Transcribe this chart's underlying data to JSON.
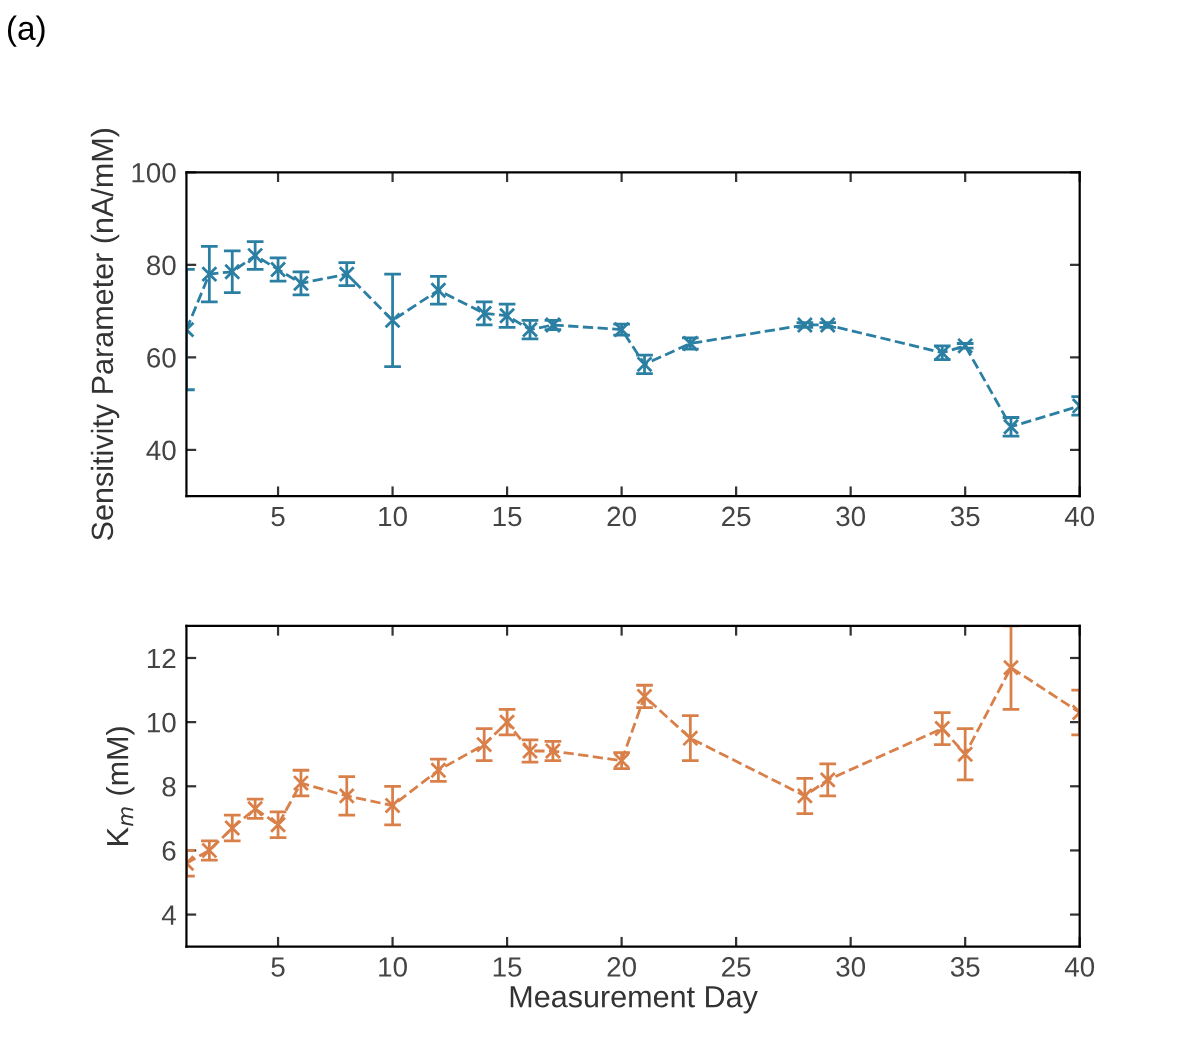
{
  "chart_data": [
    {
      "type": "line",
      "annotations": [
        "(a)"
      ],
      "ylabel": "Sensitivity Parameter (nA/mM)",
      "x": [
        1,
        2,
        3,
        4,
        5,
        6,
        8,
        10,
        12,
        14,
        15,
        16,
        17,
        20,
        21,
        23,
        28,
        29,
        34,
        35,
        37,
        40
      ],
      "series": [
        {
          "color": "#2b7fa3",
          "values": [
            66,
            78,
            78.5,
            82,
            79,
            76,
            78,
            68,
            74.5,
            69.5,
            69,
            66,
            67,
            66,
            58.5,
            63,
            67,
            67,
            61,
            62.5,
            45,
            49.5
          ],
          "errors": [
            13,
            6,
            4.5,
            3,
            2.5,
            2.5,
            2.5,
            10,
            3,
            2.5,
            2.5,
            2,
            1,
            1.2,
            2,
            1.2,
            0.5,
            0.5,
            1.5,
            0.5,
            2,
            2
          ]
        }
      ],
      "xlim": [
        1,
        40
      ],
      "xticks": [
        5,
        10,
        15,
        20,
        25,
        30,
        35,
        40
      ],
      "ylim": [
        30,
        100
      ],
      "yticks": [
        40,
        60,
        80,
        100
      ],
      "marker": "cross",
      "line_style": "dashed",
      "grid": false,
      "legend": false
    },
    {
      "type": "line",
      "xlabel": "Measurement Day",
      "ylabel": "K$_{m}$ (mM)",
      "x": [
        1,
        2,
        3,
        4,
        5,
        6,
        8,
        10,
        12,
        14,
        15,
        16,
        17,
        20,
        21,
        23,
        28,
        29,
        34,
        35,
        37,
        40
      ],
      "series": [
        {
          "color": "#d9804a",
          "values": [
            5.6,
            6.0,
            6.7,
            7.3,
            6.8,
            8.1,
            7.7,
            7.4,
            8.5,
            9.3,
            10.0,
            9.1,
            9.1,
            8.8,
            10.8,
            9.5,
            7.7,
            8.2,
            9.8,
            9.0,
            11.7,
            10.3
          ],
          "errors": [
            0.4,
            0.3,
            0.4,
            0.3,
            0.4,
            0.4,
            0.6,
            0.6,
            0.35,
            0.5,
            0.4,
            0.35,
            0.3,
            0.25,
            0.35,
            0.7,
            0.55,
            0.5,
            0.5,
            0.8,
            1.3,
            0.7
          ]
        }
      ],
      "xlim": [
        1,
        40
      ],
      "xticks": [
        5,
        10,
        15,
        20,
        25,
        30,
        35,
        40
      ],
      "ylim": [
        3,
        13
      ],
      "yticks": [
        4,
        6,
        8,
        10,
        12
      ],
      "marker": "cross",
      "line_style": "dashed",
      "grid": false,
      "legend": false
    }
  ]
}
